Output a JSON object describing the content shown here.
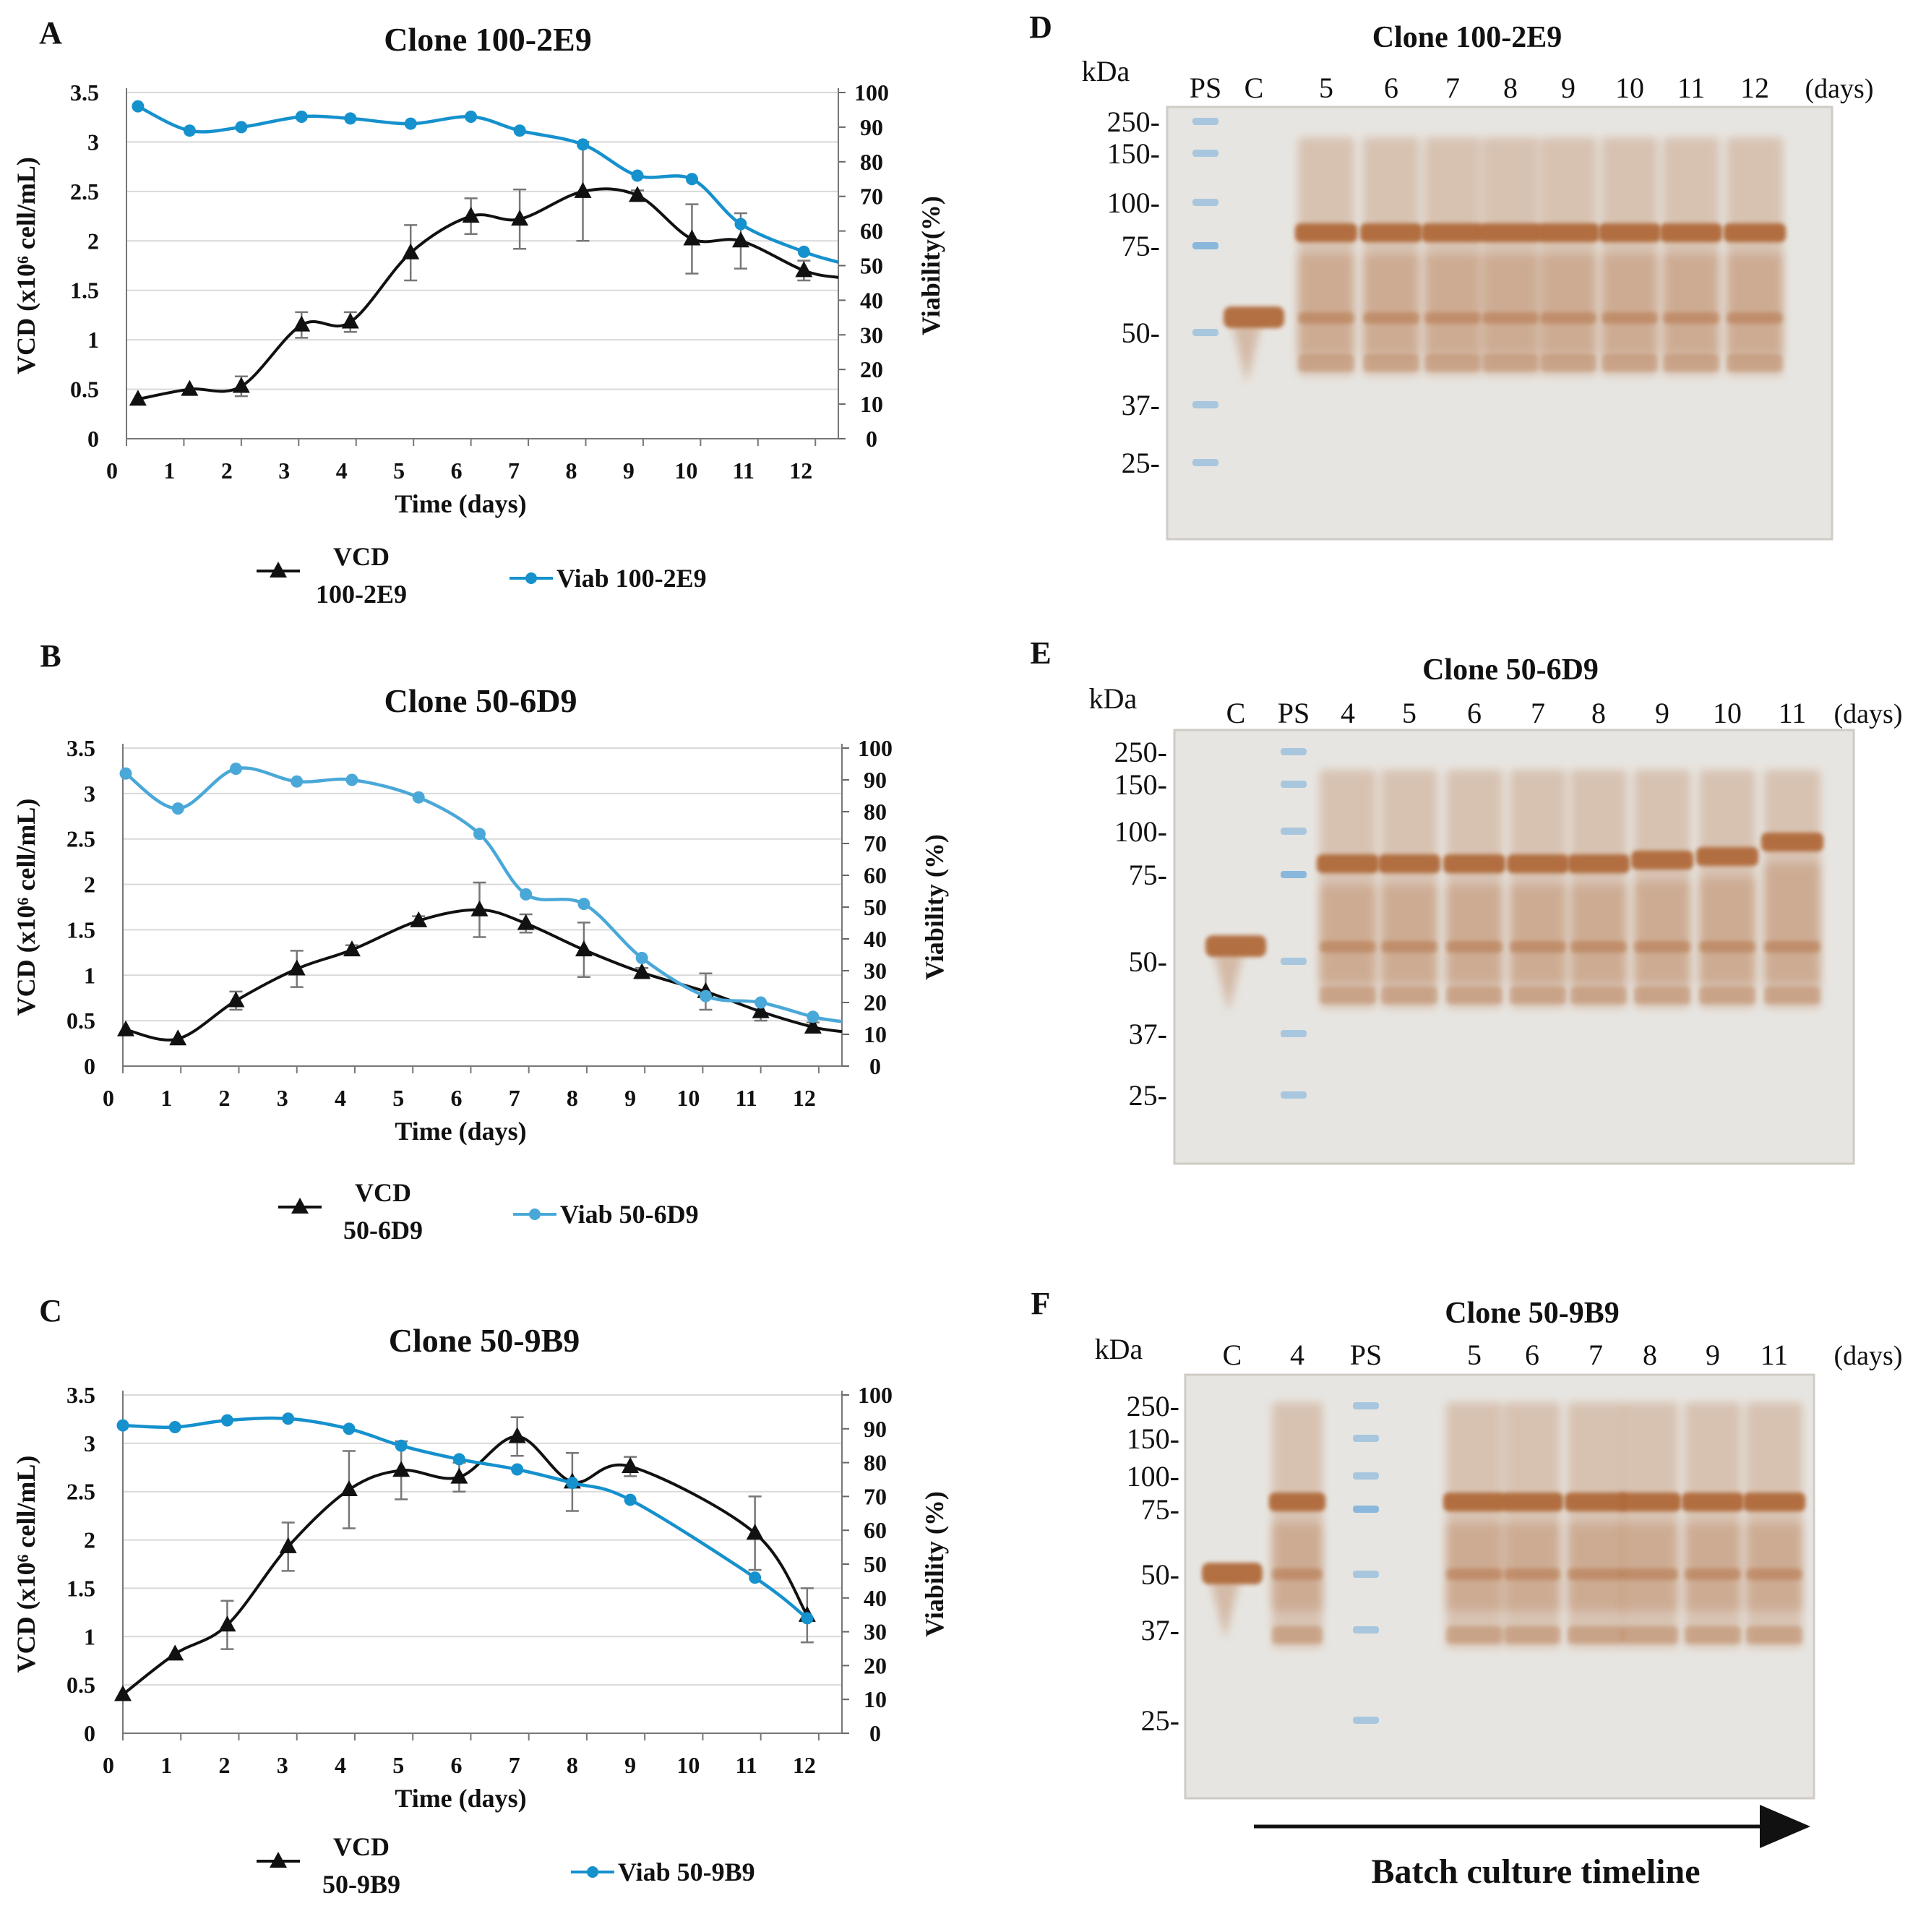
{
  "colors": {
    "vcd": "#111111",
    "viab_dark": "#1591cd",
    "viab_light": "#4aa8d8",
    "gridline": "#d9d9d9",
    "gel_bg": "#e7e5e1",
    "band": "#b06a3a",
    "marker": "#7fb2dc"
  },
  "chart_data": [
    {
      "panel": "A",
      "type": "line",
      "title": "Clone 100-2E9",
      "xlabel": "Time (days)",
      "ylabel": "VCD (x10⁶ cell/mL)",
      "y2label": "Viability(%)",
      "xticks": [
        "0",
        "1",
        "2",
        "3",
        "4",
        "5",
        "6",
        "7",
        "8",
        "9",
        "10",
        "11",
        "12"
      ],
      "yticks": [
        "0",
        "0.5",
        "1",
        "1.5",
        "2",
        "2.5",
        "3",
        "3.5"
      ],
      "y2ticks": [
        "0",
        "10",
        "20",
        "30",
        "40",
        "50",
        "60",
        "70",
        "80",
        "90",
        "100"
      ],
      "xlim": [
        0,
        12.4
      ],
      "ylim": [
        0,
        3.5
      ],
      "y2lim": [
        0,
        100
      ],
      "series": [
        {
          "name": "VCD 100-2E9",
          "legend_lines": [
            "VCD",
            "100-2E9"
          ],
          "axis": "left",
          "marker": "triangle",
          "color_key": "vcd",
          "x": [
            0.2,
            1.1,
            2.0,
            3.05,
            3.9,
            4.95,
            6.0,
            6.85,
            7.95,
            8.9,
            9.85,
            10.7,
            11.8,
            12.4
          ],
          "y": [
            0.4,
            0.5,
            0.53,
            1.15,
            1.18,
            1.88,
            2.25,
            2.22,
            2.5,
            2.46,
            2.02,
            2.0,
            1.7,
            1.63
          ],
          "err": [
            0,
            0,
            0.1,
            0.13,
            0.1,
            0.28,
            0.18,
            0.3,
            0.5,
            0.05,
            0.35,
            0.28,
            0.1,
            0
          ],
          "markers": [
            0,
            1,
            2,
            3,
            4,
            5,
            6,
            7,
            8,
            9,
            10,
            11,
            12
          ]
        },
        {
          "name": "Viab 100-2E9",
          "legend_lines": [
            "Viab 100-2E9"
          ],
          "axis": "right",
          "marker": "circle",
          "color_key": "viab_dark",
          "x": [
            0.2,
            1.1,
            2.0,
            3.05,
            3.9,
            4.95,
            6.0,
            6.85,
            7.95,
            8.9,
            9.85,
            10.7,
            11.8,
            12.4
          ],
          "y": [
            96,
            89,
            90,
            93,
            92.5,
            91,
            93,
            89,
            85,
            76,
            75,
            62,
            54,
            51
          ],
          "markers": [
            0,
            1,
            2,
            3,
            4,
            5,
            6,
            7,
            8,
            9,
            10,
            11,
            12
          ]
        }
      ]
    },
    {
      "panel": "B",
      "type": "line",
      "title": "Clone 50-6D9",
      "xlabel": "Time (days)",
      "ylabel": "VCD (x10⁶ cell/mL)",
      "y2label": "Viability (%)",
      "xticks": [
        "0",
        "1",
        "2",
        "3",
        "4",
        "5",
        "6",
        "7",
        "8",
        "9",
        "10",
        "11",
        "12"
      ],
      "yticks": [
        "0",
        "0.5",
        "1",
        "1.5",
        "2",
        "2.5",
        "3",
        "3.5"
      ],
      "y2ticks": [
        "0",
        "10",
        "20",
        "30",
        "40",
        "50",
        "60",
        "70",
        "80",
        "90",
        "100"
      ],
      "xlim": [
        0,
        12.4
      ],
      "ylim": [
        0,
        3.5
      ],
      "y2lim": [
        0,
        100
      ],
      "series": [
        {
          "name": "VCD 50-6D9",
          "legend_lines": [
            "VCD",
            "50-6D9"
          ],
          "axis": "left",
          "marker": "triangle",
          "color_key": "vcd",
          "x": [
            0.05,
            0.95,
            1.95,
            3.0,
            3.95,
            5.1,
            6.15,
            6.95,
            7.95,
            8.95,
            10.05,
            11.0,
            11.9,
            12.4
          ],
          "y": [
            0.4,
            0.3,
            0.72,
            1.07,
            1.28,
            1.6,
            1.72,
            1.57,
            1.28,
            1.03,
            0.82,
            0.6,
            0.43,
            0.38
          ],
          "err": [
            0,
            0,
            0.1,
            0.2,
            0.05,
            0.05,
            0.3,
            0.1,
            0.3,
            0.05,
            0.2,
            0.1,
            0.05,
            0
          ],
          "markers": [
            0,
            1,
            2,
            3,
            4,
            5,
            6,
            7,
            8,
            9,
            10,
            11,
            12
          ]
        },
        {
          "name": "Viab 50-6D9",
          "legend_lines": [
            "Viab 50-6D9"
          ],
          "axis": "right",
          "marker": "circle",
          "color_key": "viab_light",
          "x": [
            0.05,
            0.95,
            1.95,
            3.0,
            3.95,
            5.1,
            6.15,
            6.95,
            7.95,
            8.95,
            10.05,
            11.0,
            11.9,
            12.4
          ],
          "y": [
            92,
            81,
            93.5,
            89.5,
            90,
            84.5,
            73,
            54,
            51,
            34,
            22,
            20,
            15.5,
            14
          ],
          "markers": [
            0,
            1,
            2,
            3,
            4,
            5,
            6,
            7,
            8,
            9,
            10,
            11,
            12
          ]
        }
      ]
    },
    {
      "panel": "C",
      "type": "line",
      "title": "Clone 50-9B9",
      "xlabel": "Time (days)",
      "ylabel": "VCD (x10⁶ cell/mL)",
      "y2label": "Viability (%)",
      "xticks": [
        "0",
        "1",
        "2",
        "3",
        "4",
        "5",
        "6",
        "7",
        "8",
        "9",
        "10",
        "11",
        "12"
      ],
      "yticks": [
        "0",
        "0.5",
        "1",
        "1.5",
        "2",
        "2.5",
        "3",
        "3.5"
      ],
      "y2ticks": [
        "0",
        "10",
        "20",
        "30",
        "40",
        "50",
        "60",
        "70",
        "80",
        "90",
        "100"
      ],
      "xlim": [
        0,
        12.4
      ],
      "ylim": [
        0,
        3.5
      ],
      "y2lim": [
        0,
        100
      ],
      "series": [
        {
          "name": "VCD 50-9B9",
          "legend_lines": [
            "VCD",
            "50-9B9"
          ],
          "axis": "left",
          "marker": "triangle",
          "color_key": "vcd",
          "x": [
            0.0,
            0.9,
            1.8,
            2.85,
            3.9,
            4.8,
            5.8,
            6.8,
            7.75,
            8.75,
            10.9,
            11.8
          ],
          "y": [
            0.4,
            0.82,
            1.12,
            1.93,
            2.52,
            2.72,
            2.65,
            3.07,
            2.6,
            2.76,
            2.07,
            1.22
          ],
          "err": [
            0,
            0,
            0.25,
            0.25,
            0.4,
            0.3,
            0.15,
            0.2,
            0.3,
            0.1,
            0.38,
            0.28
          ],
          "markers": [
            0,
            1,
            2,
            3,
            4,
            5,
            6,
            7,
            8,
            9,
            10,
            11
          ]
        },
        {
          "name": "Viab 50-9B9",
          "legend_lines": [
            "Viab 50-9B9"
          ],
          "axis": "right",
          "marker": "circle",
          "color_key": "viab_dark",
          "x": [
            0.0,
            0.9,
            1.8,
            2.85,
            3.9,
            4.8,
            5.8,
            6.8,
            7.75,
            8.75,
            10.9,
            11.8
          ],
          "y": [
            91,
            90.5,
            92.5,
            93,
            90,
            85,
            81,
            78,
            74,
            69,
            46,
            34
          ],
          "markers": [
            0,
            1,
            2,
            3,
            4,
            5,
            6,
            7,
            8,
            9,
            10,
            11
          ]
        }
      ]
    }
  ],
  "gels": [
    {
      "panel": "D",
      "title": "Clone 100-2E9",
      "kda_label": "kDa",
      "days_label": "(days)",
      "lanes": [
        "PS",
        "C",
        "5",
        "6",
        "7",
        "8",
        "9",
        "10",
        "11",
        "12"
      ],
      "mw": [
        "250-",
        "150-",
        "100-",
        "75-",
        "50-",
        "37-",
        "25-"
      ]
    },
    {
      "panel": "E",
      "title": "Clone 50-6D9",
      "kda_label": "kDa",
      "days_label": "(days)",
      "lanes": [
        "C",
        "PS",
        "4",
        "5",
        "6",
        "7",
        "8",
        "9",
        "10",
        "11"
      ],
      "mw": [
        "250-",
        "150-",
        "100-",
        "75-",
        "50-",
        "37-",
        "25-"
      ]
    },
    {
      "panel": "F",
      "title": "Clone 50-9B9",
      "kda_label": "kDa",
      "days_label": "(days)",
      "lanes": [
        "C",
        "4",
        "PS",
        "5",
        "6",
        "7",
        "8",
        "9",
        "11"
      ],
      "mw": [
        "250-",
        "150-",
        "100-",
        "75-",
        "50-",
        "37-",
        "25-"
      ]
    }
  ],
  "timeline_label": "Batch culture timeline"
}
